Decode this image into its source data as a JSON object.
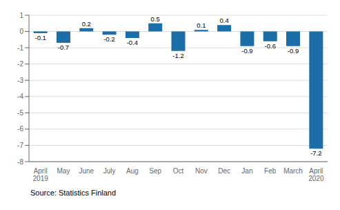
{
  "chart_data": {
    "type": "bar",
    "categories": [
      "April\n2019",
      "May",
      "June",
      "July",
      "Aug",
      "Sep",
      "Oct",
      "Nov",
      "Dec",
      "Jan",
      "Feb",
      "March",
      "April\n2020"
    ],
    "values": [
      -0.1,
      -0.7,
      0.2,
      -0.2,
      -0.4,
      0.5,
      -1.2,
      0.1,
      0.4,
      -0.9,
      -0.6,
      -0.9,
      -7.2
    ],
    "color": "#1B6EA8",
    "ylim": [
      -8,
      1
    ],
    "yticks": [
      -8,
      -7,
      -6,
      -5,
      -4,
      -3,
      -2,
      -1,
      0,
      1
    ],
    "grid": true,
    "data_labels": true,
    "annotations": [
      "Source: Statistics Finland"
    ]
  }
}
